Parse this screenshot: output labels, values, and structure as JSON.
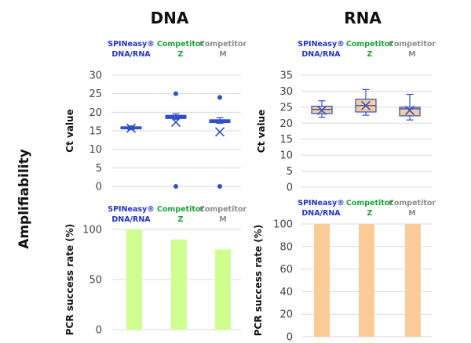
{
  "headers": {
    "dna": "DNA",
    "rna": "RNA"
  },
  "row_label": "Amplifiability",
  "legend": [
    {
      "line1": "SPINeasy®",
      "line2": "DNA/RNA",
      "color": "#2233cc"
    },
    {
      "line1": "Competitor",
      "line2": "Z",
      "color": "#19a338"
    },
    {
      "line1": "Competitor",
      "line2": "M",
      "color": "#8a8a8a"
    }
  ],
  "colors": {
    "box_stroke": "#3050c8",
    "box_fill_rna": "#f6cf96",
    "bar_dna": "#cfff8f",
    "bar_rna": "#fbcb98",
    "grid": "#d9d9d9"
  },
  "chart_data": [
    {
      "id": "dna_ct",
      "type": "box",
      "ylabel": "Ct value",
      "ylim": [
        0,
        30
      ],
      "yticks": [
        0,
        5,
        10,
        15,
        20,
        25,
        30
      ],
      "categories": [
        "SPINeasy® DNA/RNA",
        "Competitor Z",
        "Competitor M"
      ],
      "boxes": [
        {
          "q1": 15.5,
          "median": 15.8,
          "q3": 16.1,
          "mean": 15.7,
          "wmin": 15.3,
          "wmax": 16.3,
          "outliers": []
        },
        {
          "q1": 18.3,
          "median": 18.8,
          "q3": 19.2,
          "mean": 17.3,
          "wmin": 18.1,
          "wmax": 19.6,
          "outliers": [
            25,
            0
          ]
        },
        {
          "q1": 17.2,
          "median": 17.6,
          "q3": 18.0,
          "mean": 14.7,
          "wmin": 17.0,
          "wmax": 18.5,
          "outliers": [
            24,
            0
          ]
        }
      ]
    },
    {
      "id": "rna_ct",
      "type": "box",
      "ylabel": "Ct value",
      "ylim": [
        0,
        35
      ],
      "yticks": [
        0,
        5,
        10,
        15,
        20,
        25,
        30,
        35
      ],
      "categories": [
        "SPINeasy® DNA/RNA",
        "Competitor Z",
        "Competitor M"
      ],
      "boxes": [
        {
          "q1": 23.0,
          "median": 24.3,
          "q3": 25.3,
          "mean": 24.0,
          "wmin": 21.8,
          "wmax": 27.0,
          "outliers": []
        },
        {
          "q1": 23.5,
          "median": 25.5,
          "q3": 27.5,
          "mean": 25.5,
          "wmin": 22.5,
          "wmax": 30.5,
          "outliers": []
        },
        {
          "q1": 22.3,
          "median": 24.5,
          "q3": 25.0,
          "mean": 24.0,
          "wmin": 21.0,
          "wmax": 29.0,
          "outliers": []
        }
      ]
    },
    {
      "id": "dna_pcr",
      "type": "bar",
      "ylabel": "PCR success rate (%)",
      "ylim": [
        0,
        100
      ],
      "yticks": [
        0,
        50,
        100
      ],
      "categories": [
        "SPINeasy® DNA/RNA",
        "Competitor Z",
        "Competitor M"
      ],
      "values": [
        100,
        90,
        80
      ]
    },
    {
      "id": "rna_pcr",
      "type": "bar",
      "ylabel": "PCR success rate (%)",
      "ylim": [
        0,
        100
      ],
      "yticks": [
        0,
        20,
        40,
        60,
        80,
        100
      ],
      "categories": [
        "SPINeasy® DNA/RNA",
        "Competitor Z",
        "Competitor M"
      ],
      "values": [
        100,
        100,
        100
      ]
    }
  ]
}
